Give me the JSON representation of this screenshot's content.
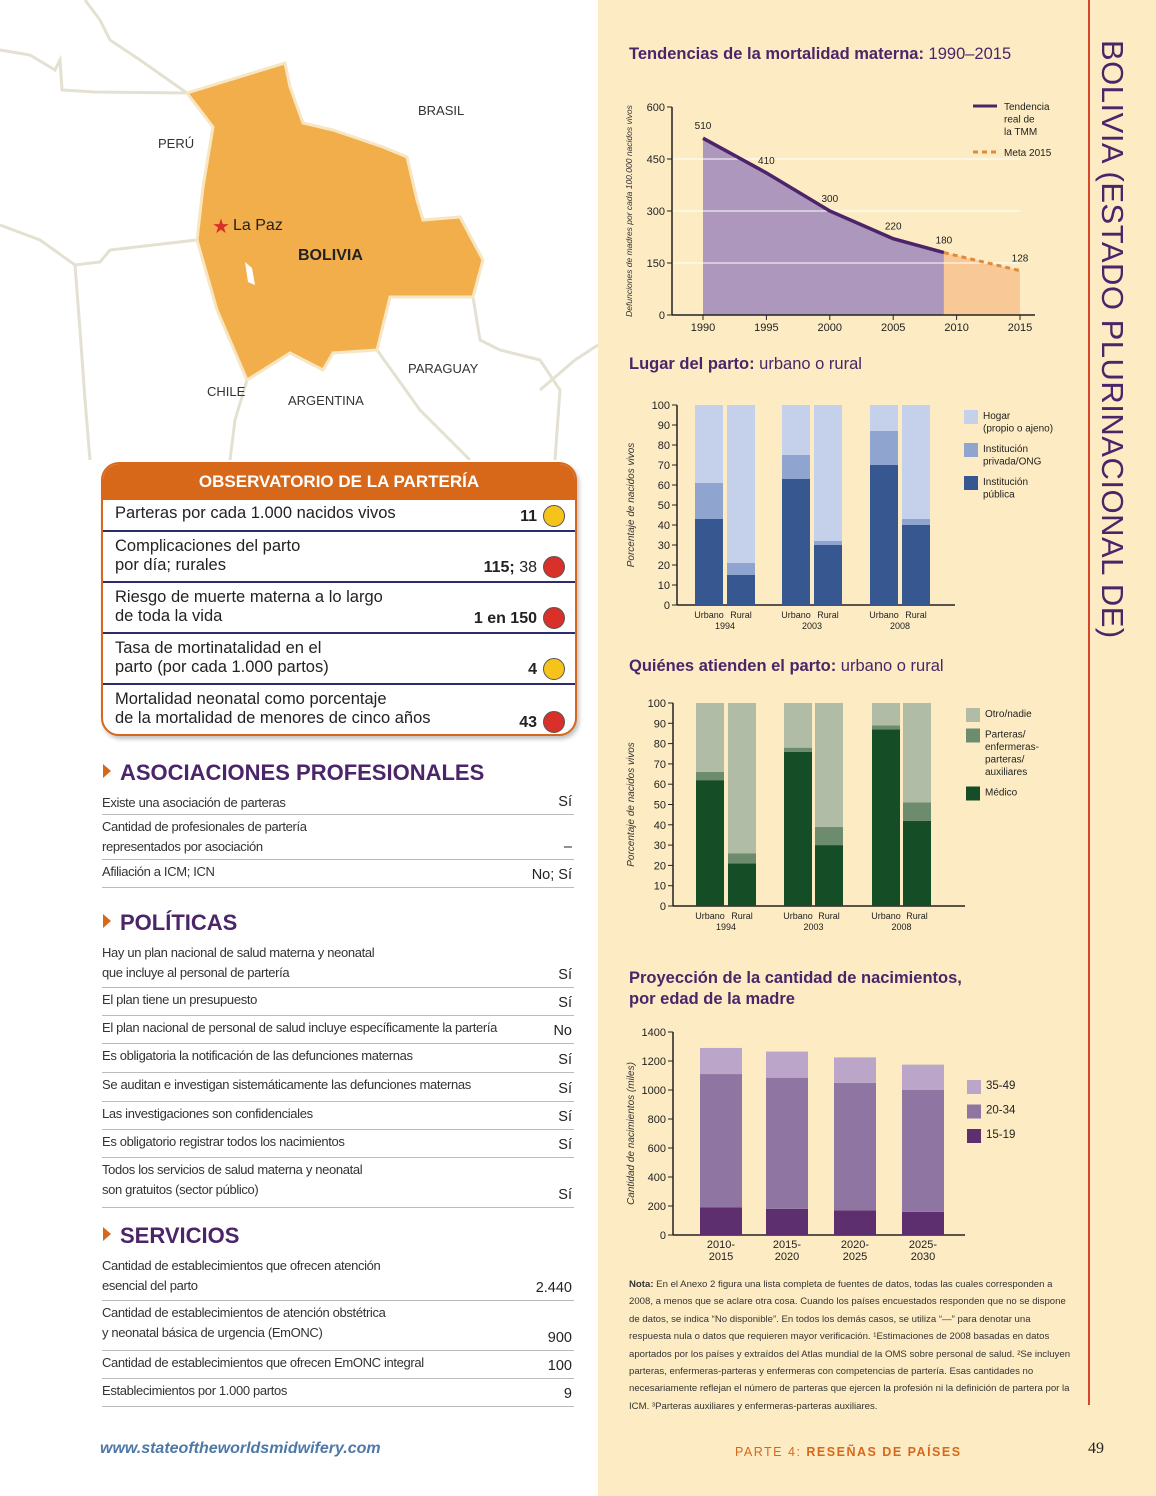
{
  "country_title": "BOLIVIA (ESTADO PLURINACIONAL DE)",
  "map": {
    "labels": {
      "brasil": "BRASIL",
      "peru": "PERÚ",
      "capital": "La Paz",
      "country": "BOLIVIA",
      "paraguay": "PARAGUAY",
      "chile": "CHILE",
      "argentina": "ARGENTINA"
    },
    "country_color": "#f2ae4a",
    "capital_color": "#d9302a"
  },
  "observatorio": {
    "title": "OBSERVATORIO DE LA PARTERÍA",
    "rows": [
      {
        "label": "Parteras por cada 1.000 nacidos vivos",
        "value": "11",
        "value_extra": "",
        "status": "yellow"
      },
      {
        "label": "Complicaciones del parto\npor día; rurales",
        "value": "115;",
        "value_extra": " 38",
        "status": "red"
      },
      {
        "label": "Riesgo de muerte materna a lo largo\nde toda la vida",
        "value": "1 en 150",
        "value_extra": "",
        "status": "red"
      },
      {
        "label": "Tasa de mortinatalidad en el\nparto (por cada 1.000 partos)",
        "value": "4",
        "value_extra": "",
        "status": "yellow"
      },
      {
        "label": "Mortalidad neonatal como porcentaje\nde la mortalidad de menores de cinco años",
        "value": "43",
        "value_extra": "",
        "status": "red"
      }
    ],
    "status_colors": {
      "yellow": "#f6c31a",
      "red": "#d9302a"
    }
  },
  "asociaciones": {
    "heading": "ASOCIACIONES PROFESIONALES",
    "rows": [
      {
        "label": "Existe una asociación de parteras",
        "value": "Sí"
      },
      {
        "label": "Cantidad de profesionales de partería\nrepresentados por asociación",
        "value": "–"
      },
      {
        "label": "Afiliación a ICM; ICN",
        "value": "No; Sí"
      }
    ]
  },
  "politicas": {
    "heading": "POLÍTICAS",
    "rows": [
      {
        "label": "Hay un plan nacional de salud materna y neonatal\nque incluye al personal de partería",
        "value": "Sí"
      },
      {
        "label": "El plan tiene un presupuesto",
        "value": "Sí"
      },
      {
        "label": "El plan nacional de personal de salud incluye específicamente la partería",
        "value": "No"
      },
      {
        "label": "Es obligatoria la notificación de las defunciones maternas",
        "value": "Sí"
      },
      {
        "label": "Se auditan e investigan sistemáticamente las defunciones maternas",
        "value": "Sí"
      },
      {
        "label": "Las investigaciones son confidenciales",
        "value": "Sí"
      },
      {
        "label": "Es obligatorio registrar todos los nacimientos",
        "value": "Sí"
      },
      {
        "label": "Todos los servicios de salud materna y neonatal\nson gratuitos (sector público)",
        "value": "Sí"
      }
    ]
  },
  "servicios": {
    "heading": "SERVICIOS",
    "rows": [
      {
        "label": "Cantidad de establecimientos que ofrecen atención\nesencial del parto",
        "value": "2.440"
      },
      {
        "label": "Cantidad de establecimientos de atención obstétrica\ny neonatal básica de urgencia (EmONC)",
        "value": "900"
      },
      {
        "label": "Cantidad de establecimientos que ofrecen EmONC integral",
        "value": "100"
      },
      {
        "label": "Establecimientos por 1.000 partos",
        "value": "9"
      }
    ]
  },
  "chart_data": [
    {
      "type": "area",
      "title": "Tendencias de la mortalidad materna:",
      "title_suffix": " 1990–2015",
      "ylabel": "Defunciones de madres por cada 100.000 nacidos vivos",
      "ylim": [
        0,
        600
      ],
      "yticks": [
        0,
        150,
        300,
        450,
        600
      ],
      "xticks": [
        1990,
        1995,
        2000,
        2005,
        2010,
        2015
      ],
      "grid": true,
      "legend_position": "top-right",
      "series": [
        {
          "name": "Tendencia real de la TMM",
          "style": "solid",
          "color": "#4b2469",
          "fill": "#ae97bd",
          "points": [
            [
              1990,
              510
            ],
            [
              1995,
              410
            ],
            [
              2000,
              300
            ],
            [
              2005,
              220
            ],
            [
              2009,
              180
            ]
          ]
        },
        {
          "name": "Meta 2015",
          "style": "dashed",
          "color": "#e08a3a",
          "fill": "#f8c996",
          "points": [
            [
              2009,
              180
            ],
            [
              2015,
              128
            ]
          ]
        }
      ],
      "legend": [
        "Tendencia\nreal de\nla TMM",
        "Meta 2015"
      ]
    },
    {
      "type": "bar",
      "stacked": true,
      "title": "Lugar del parto:",
      "title_suffix": " urbano o rural",
      "ylabel": "Porcentaje de nacidos vivos",
      "ylim": [
        0,
        100
      ],
      "yticks": [
        0,
        10,
        20,
        30,
        40,
        50,
        60,
        70,
        80,
        90,
        100
      ],
      "categories": [
        "Urbano",
        "Rural",
        "Urbano",
        "Rural",
        "Urbano",
        "Rural"
      ],
      "groups": [
        "1994",
        "2003",
        "2008"
      ],
      "legend_position": "right",
      "series": [
        {
          "name": "Institución\npública",
          "color": "#36578f",
          "values": [
            43,
            15,
            63,
            30,
            70,
            40
          ]
        },
        {
          "name": "Institución\nprivada/ONG",
          "color": "#8fa5d0",
          "values": [
            18,
            6,
            12,
            2,
            17,
            3
          ]
        },
        {
          "name": "Hogar\n(propio o ajeno)",
          "color": "#c5d0ea",
          "values": [
            39,
            79,
            25,
            68,
            13,
            57
          ]
        }
      ]
    },
    {
      "type": "bar",
      "stacked": true,
      "title": "Quiénes atienden el parto:",
      "title_suffix": " urbano o rural",
      "ylabel": "Porcentaje de nacidos vivos",
      "ylim": [
        0,
        100
      ],
      "yticks": [
        0,
        10,
        20,
        30,
        40,
        50,
        60,
        70,
        80,
        90,
        100
      ],
      "categories": [
        "Urbano",
        "Rural",
        "Urbano",
        "Rural",
        "Urbano",
        "Rural"
      ],
      "groups": [
        "1994",
        "2003",
        "2008"
      ],
      "legend_position": "right",
      "series": [
        {
          "name": "Médico",
          "color": "#154d26",
          "values": [
            62,
            21,
            76,
            30,
            87,
            42
          ]
        },
        {
          "name": "Parteras/\nenfermeras-\nparteras/\nauxiliares",
          "color": "#6d8c6e",
          "values": [
            4,
            5,
            2,
            9,
            2,
            9
          ]
        },
        {
          "name": "Otro/nadie",
          "color": "#b0bca6",
          "values": [
            34,
            74,
            22,
            61,
            11,
            49
          ]
        }
      ]
    },
    {
      "type": "bar",
      "stacked": true,
      "title": "Proyección de la cantidad de nacimientos,\npor edad de la madre",
      "title_suffix": "",
      "ylabel": "Cantidad de nacimientos (miles)",
      "ylim": [
        0,
        1400
      ],
      "yticks": [
        0,
        200,
        400,
        600,
        800,
        1000,
        1200,
        1400
      ],
      "categories": [
        "2010-\n2015",
        "2015-\n2020",
        "2020-\n2025",
        "2025-\n2030"
      ],
      "legend_position": "right",
      "series": [
        {
          "name": "15-19",
          "color": "#5e2f6e",
          "values": [
            190,
            180,
            170,
            160
          ]
        },
        {
          "name": "20-34",
          "color": "#8f76a2",
          "values": [
            920,
            905,
            880,
            840
          ]
        },
        {
          "name": "35-49",
          "color": "#bba5c8",
          "values": [
            180,
            180,
            175,
            175
          ]
        }
      ]
    }
  ],
  "note": {
    "bold": "Nota:",
    "text": " En el Anexo 2 figura una lista completa de fuentes de datos, todas las cuales corresponden a 2008, a menos que se aclare otra cosa. Cuando los países encuestados responden que no se dispone de datos, se indica “No disponible”. En todos los demás casos, se utiliza “—” para denotar una respuesta nula o datos que requieren mayor verificación. ¹Estimaciones de 2008 basadas en datos aportados por los países y extraídos del Atlas mundial de la OMS sobre personal de salud. ²Se incluyen parteras, enfermeras-parteras y enfermeras con competencias de partería. Esas cantidades no necesariamente reflejan el número de parteras que ejercen la profesión ni la definición de partera por la ICM. ³Parteras auxiliares y enfermeras-parteras auxiliares."
  },
  "footer": {
    "url": "www.stateoftheworldsmidwifery.com",
    "part": "PARTE 4: ",
    "part_bold": "RESEÑAS DE PAÍSES",
    "page": "49"
  }
}
